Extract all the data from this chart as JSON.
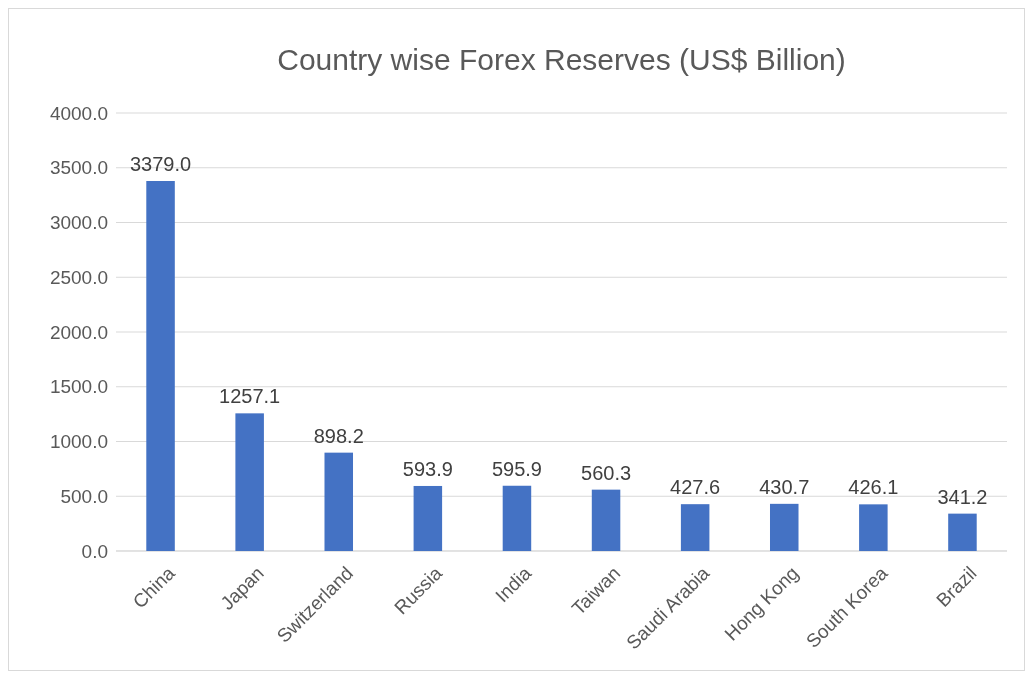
{
  "chart_data": {
    "type": "bar",
    "title": "Country wise Forex Reserves (US$ Billion)",
    "categories": [
      "China",
      "Japan",
      "Switzerland",
      "Russia",
      "India",
      "Taiwan",
      "Saudi Arabia",
      "Hong Kong",
      "South Korea",
      "Brazil"
    ],
    "values": [
      3379.0,
      1257.1,
      898.2,
      593.9,
      595.9,
      560.3,
      427.6,
      430.7,
      426.1,
      341.2
    ],
    "color": "#4472c4",
    "ylim": [
      0,
      4000
    ],
    "yticks": [
      {
        "value": 0,
        "label": "0.0"
      },
      {
        "value": 500,
        "label": "500.0"
      },
      {
        "value": 1000,
        "label": "1000.0"
      },
      {
        "value": 1500,
        "label": "1500.0"
      },
      {
        "value": 2000,
        "label": "2000.0"
      },
      {
        "value": 2500,
        "label": "2500.0"
      },
      {
        "value": 3000,
        "label": "3000.0"
      },
      {
        "value": 3500,
        "label": "3500.0"
      },
      {
        "value": 4000,
        "label": "4000.0"
      }
    ],
    "value_labels": [
      "3379.0",
      "1257.1",
      "898.2",
      "593.9",
      "595.9",
      "560.3",
      "427.6",
      "430.7",
      "426.1",
      "341.2"
    ],
    "grid": true
  }
}
